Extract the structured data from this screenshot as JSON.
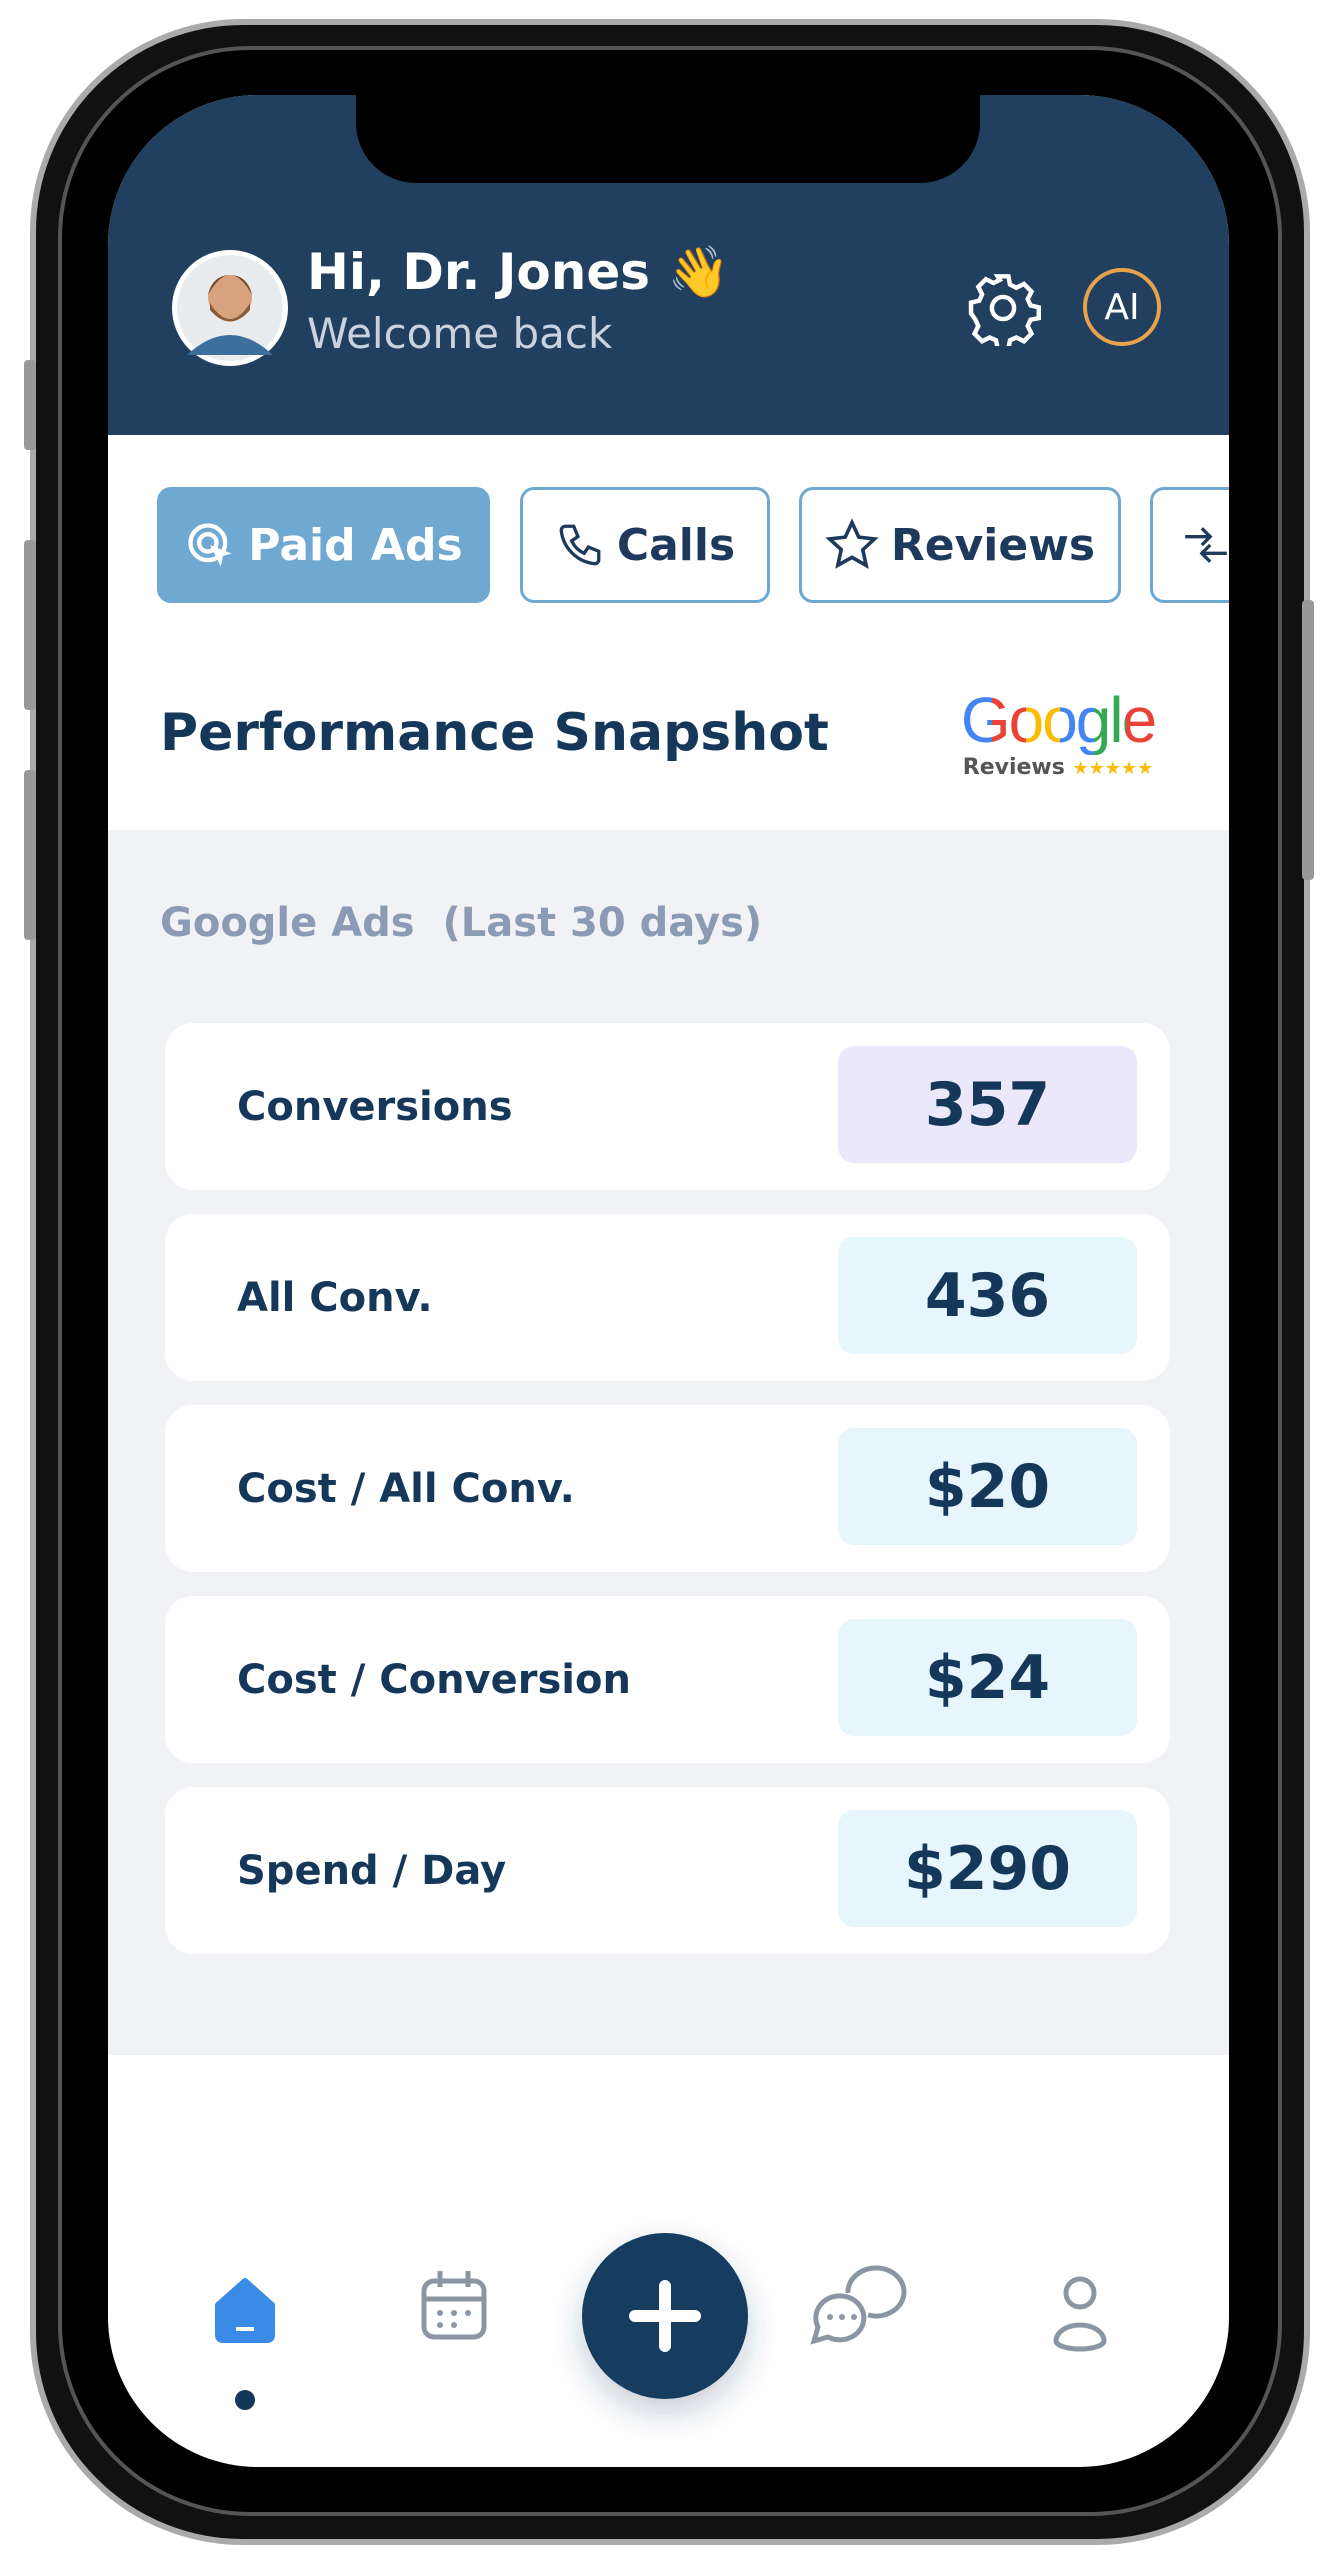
{
  "header": {
    "greeting": "Hi, Dr. Jones 👋",
    "subtitle": "Welcome back",
    "ai_button": "AI"
  },
  "tabs": [
    "Paid Ads",
    "Calls",
    "Reviews"
  ],
  "section": {
    "title": "Performance Snapshot",
    "badge": {
      "brand": "Google",
      "caption": "Reviews",
      "stars": "★★★★★"
    }
  },
  "metrics": {
    "title": "Google Ads  (Last 30 days)",
    "rows": [
      {
        "label": "Conversions",
        "value": "357"
      },
      {
        "label": "All Conv.",
        "value": "436"
      },
      {
        "label": "Cost / All Conv.",
        "value": "$20"
      },
      {
        "label": "Cost / Conversion",
        "value": "$24"
      },
      {
        "label": "Spend / Day",
        "value": "$290"
      }
    ]
  }
}
